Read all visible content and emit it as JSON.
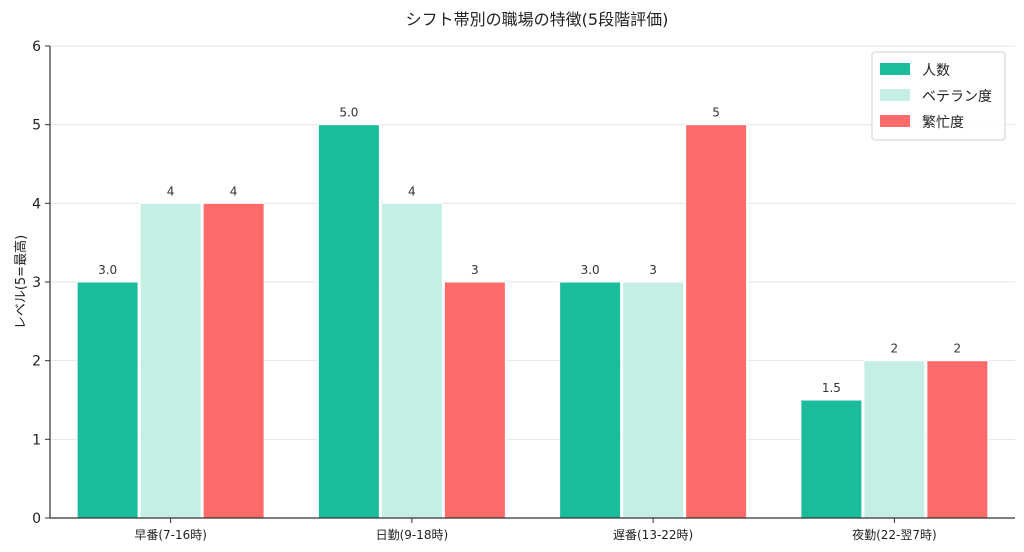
{
  "chart_data": {
    "type": "bar",
    "title": "シフト帯別の職場の特徴(5段階評価)",
    "xlabel": "",
    "ylabel": "レベル(5=最高)",
    "ylim": [
      0,
      6
    ],
    "yticks": [
      "0",
      "1",
      "2",
      "3",
      "4",
      "5",
      "6"
    ],
    "grid": "horizontal",
    "legend_position": "top-right",
    "categories": [
      "早番(7-16時)",
      "日勤(9-18時)",
      "遅番(13-22時)",
      "夜勤(22-翌7時)"
    ],
    "series": [
      {
        "name": "人数",
        "color": "#1abc9c",
        "values": [
          3.0,
          5.0,
          3.0,
          1.5
        ],
        "labels": [
          "3.0",
          "5.0",
          "3.0",
          "1.5"
        ]
      },
      {
        "name": "ベテラン度",
        "color": "#c5efe4",
        "values": [
          4,
          4,
          3,
          2
        ],
        "labels": [
          "4",
          "4",
          "3",
          "2"
        ]
      },
      {
        "name": "繁忙度",
        "color": "#ff6b6b",
        "values": [
          4,
          3,
          5,
          2
        ],
        "labels": [
          "4",
          "3",
          "5",
          "2"
        ]
      }
    ]
  }
}
